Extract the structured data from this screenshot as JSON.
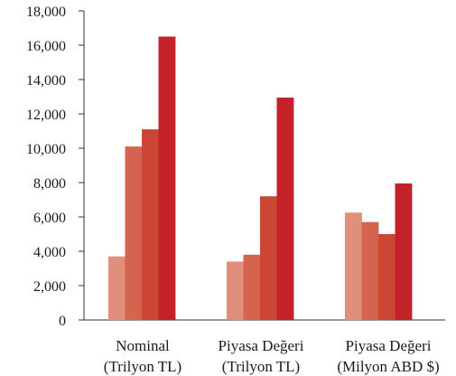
{
  "chart_data": {
    "type": "bar",
    "categories": [
      {
        "line1": "Nominal",
        "line2": "(Trilyon TL)"
      },
      {
        "line1": "Piyasa Değeri",
        "line2": "(Trilyon TL)"
      },
      {
        "line1": "Piyasa Değeri",
        "line2": "(Milyon ABD $)"
      }
    ],
    "series": [
      {
        "values": [
          3700,
          3400,
          6250
        ],
        "color": "#e08f7c"
      },
      {
        "values": [
          10100,
          3800,
          5700
        ],
        "color": "#d4644f"
      },
      {
        "values": [
          11100,
          7200,
          5000
        ],
        "color": "#cc4634"
      },
      {
        "values": [
          16500,
          12950,
          7950
        ],
        "color": "#c4222b"
      }
    ],
    "title": "",
    "xlabel": "",
    "ylabel": "",
    "ylim": [
      0,
      18000
    ],
    "yticks": [
      {
        "value": 0,
        "label": "0"
      },
      {
        "value": 2000,
        "label": "2,000"
      },
      {
        "value": 4000,
        "label": "4,000"
      },
      {
        "value": 6000,
        "label": "6,000"
      },
      {
        "value": 8000,
        "label": "8,000"
      },
      {
        "value": 10000,
        "label": "10,000"
      },
      {
        "value": 12000,
        "label": "12,000"
      },
      {
        "value": 14000,
        "label": "14,000"
      },
      {
        "value": 16000,
        "label": "16,000"
      },
      {
        "value": 18000,
        "label": "18,000"
      }
    ],
    "grid": false,
    "legend": "none"
  }
}
